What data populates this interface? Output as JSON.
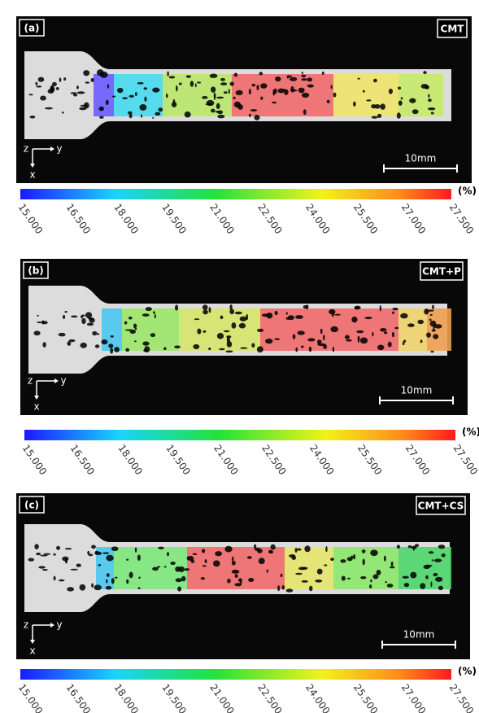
{
  "panels": [
    {
      "label": "(a)",
      "title": "CMT",
      "axes": {
        "z": "z",
        "y": "y",
        "x": "x"
      },
      "scale_bar": "10mm"
    },
    {
      "label": "(b)",
      "title": "CMT+P",
      "axes": {
        "z": "z",
        "y": "y",
        "x": "x"
      },
      "scale_bar": "10mm"
    },
    {
      "label": "(c)",
      "title": "CMT+CS",
      "axes": {
        "z": "z",
        "y": "y",
        "x": "x"
      },
      "scale_bar": "10mm"
    }
  ],
  "colorbar": {
    "unit": "(%)",
    "ticks": [
      "15.000",
      "16.500",
      "18.000",
      "19.500",
      "21.000",
      "22.500",
      "24.000",
      "25.500",
      "27.000",
      "27.500"
    ]
  }
}
